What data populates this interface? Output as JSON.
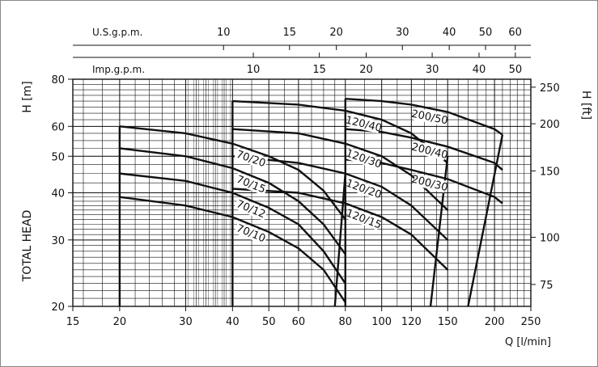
{
  "chart_data": {
    "type": "line",
    "x_axis": {
      "label": "Q [l/min]",
      "scale": "log",
      "range": [
        15,
        250
      ],
      "ticks": [
        15,
        20,
        30,
        40,
        50,
        60,
        80,
        100,
        120,
        150,
        200,
        250
      ]
    },
    "y_axis_left": {
      "label": "H [m]",
      "side_label": "TOTAL HEAD",
      "scale": "log",
      "range": [
        20,
        80
      ],
      "ticks": [
        20,
        30,
        40,
        50,
        60,
        80
      ]
    },
    "y_axis_right": {
      "label": "H [ft]",
      "ticks": [
        75,
        100,
        150,
        200,
        250
      ]
    },
    "top_axis_us": {
      "label": "U.S.g.p.m.",
      "ticks": [
        10,
        15,
        20,
        30,
        40,
        50,
        60
      ]
    },
    "top_axis_imp": {
      "label": "Imp.g.p.m.",
      "ticks": [
        10,
        15,
        20,
        30,
        40,
        50
      ]
    },
    "series": [
      {
        "name": "70/20",
        "x": [
          20,
          30,
          40,
          50,
          60,
          70,
          80
        ],
        "y": [
          60,
          57.5,
          54,
          50,
          46,
          40.5,
          34
        ]
      },
      {
        "name": "70/15",
        "x": [
          20,
          30,
          40,
          50,
          60,
          70,
          80
        ],
        "y": [
          52.5,
          50,
          46.5,
          42.5,
          38,
          33,
          27.5
        ]
      },
      {
        "name": "70/12",
        "x": [
          20,
          30,
          40,
          50,
          60,
          70,
          80
        ],
        "y": [
          45,
          43,
          40,
          36.5,
          33,
          28,
          23
        ]
      },
      {
        "name": "70/10",
        "x": [
          20,
          30,
          40,
          50,
          60,
          70,
          80
        ],
        "y": [
          39,
          37,
          34.5,
          31.5,
          28.5,
          25,
          20.5
        ]
      },
      {
        "name": "120/40",
        "x": [
          40,
          60,
          80,
          100,
          120,
          150
        ],
        "y": [
          70,
          68.5,
          66,
          62.5,
          57.5,
          48
        ]
      },
      {
        "name": "120/30",
        "x": [
          40,
          60,
          80,
          100,
          120,
          150
        ],
        "y": [
          59,
          57.5,
          54,
          50,
          44.5,
          36
        ]
      },
      {
        "name": "120/20",
        "x": [
          40,
          60,
          80,
          100,
          120,
          150
        ],
        "y": [
          50,
          48,
          45,
          41.5,
          37,
          30
        ]
      },
      {
        "name": "120/15",
        "x": [
          40,
          60,
          80,
          100,
          120,
          150
        ],
        "y": [
          41,
          40,
          37.5,
          34.5,
          31,
          25
        ]
      },
      {
        "name": "200/50",
        "x": [
          80,
          100,
          120,
          150,
          200,
          210
        ],
        "y": [
          71,
          70,
          68.5,
          65.5,
          59,
          57
        ]
      },
      {
        "name": "200/40",
        "x": [
          80,
          100,
          120,
          150,
          200,
          210
        ],
        "y": [
          59,
          58,
          56,
          53,
          48,
          46
        ]
      },
      {
        "name": "200/30",
        "x": [
          80,
          100,
          120,
          150,
          200,
          210
        ],
        "y": [
          49,
          48,
          46,
          43.5,
          39,
          37.5
        ]
      }
    ],
    "min_flow_edges": [
      {
        "x": [
          20,
          20
        ]
      },
      {
        "x": [
          40,
          40
        ]
      },
      {
        "x": [
          80,
          80
        ]
      }
    ],
    "max_flow_edges": [
      {
        "x": [
          75,
          80
        ],
        "y": [
          20,
          45
        ]
      },
      {
        "x": [
          135,
          150
        ],
        "y": [
          20,
          50
        ]
      },
      {
        "x": [
          170,
          210
        ],
        "y": [
          20,
          57
        ]
      }
    ],
    "grid": true
  }
}
